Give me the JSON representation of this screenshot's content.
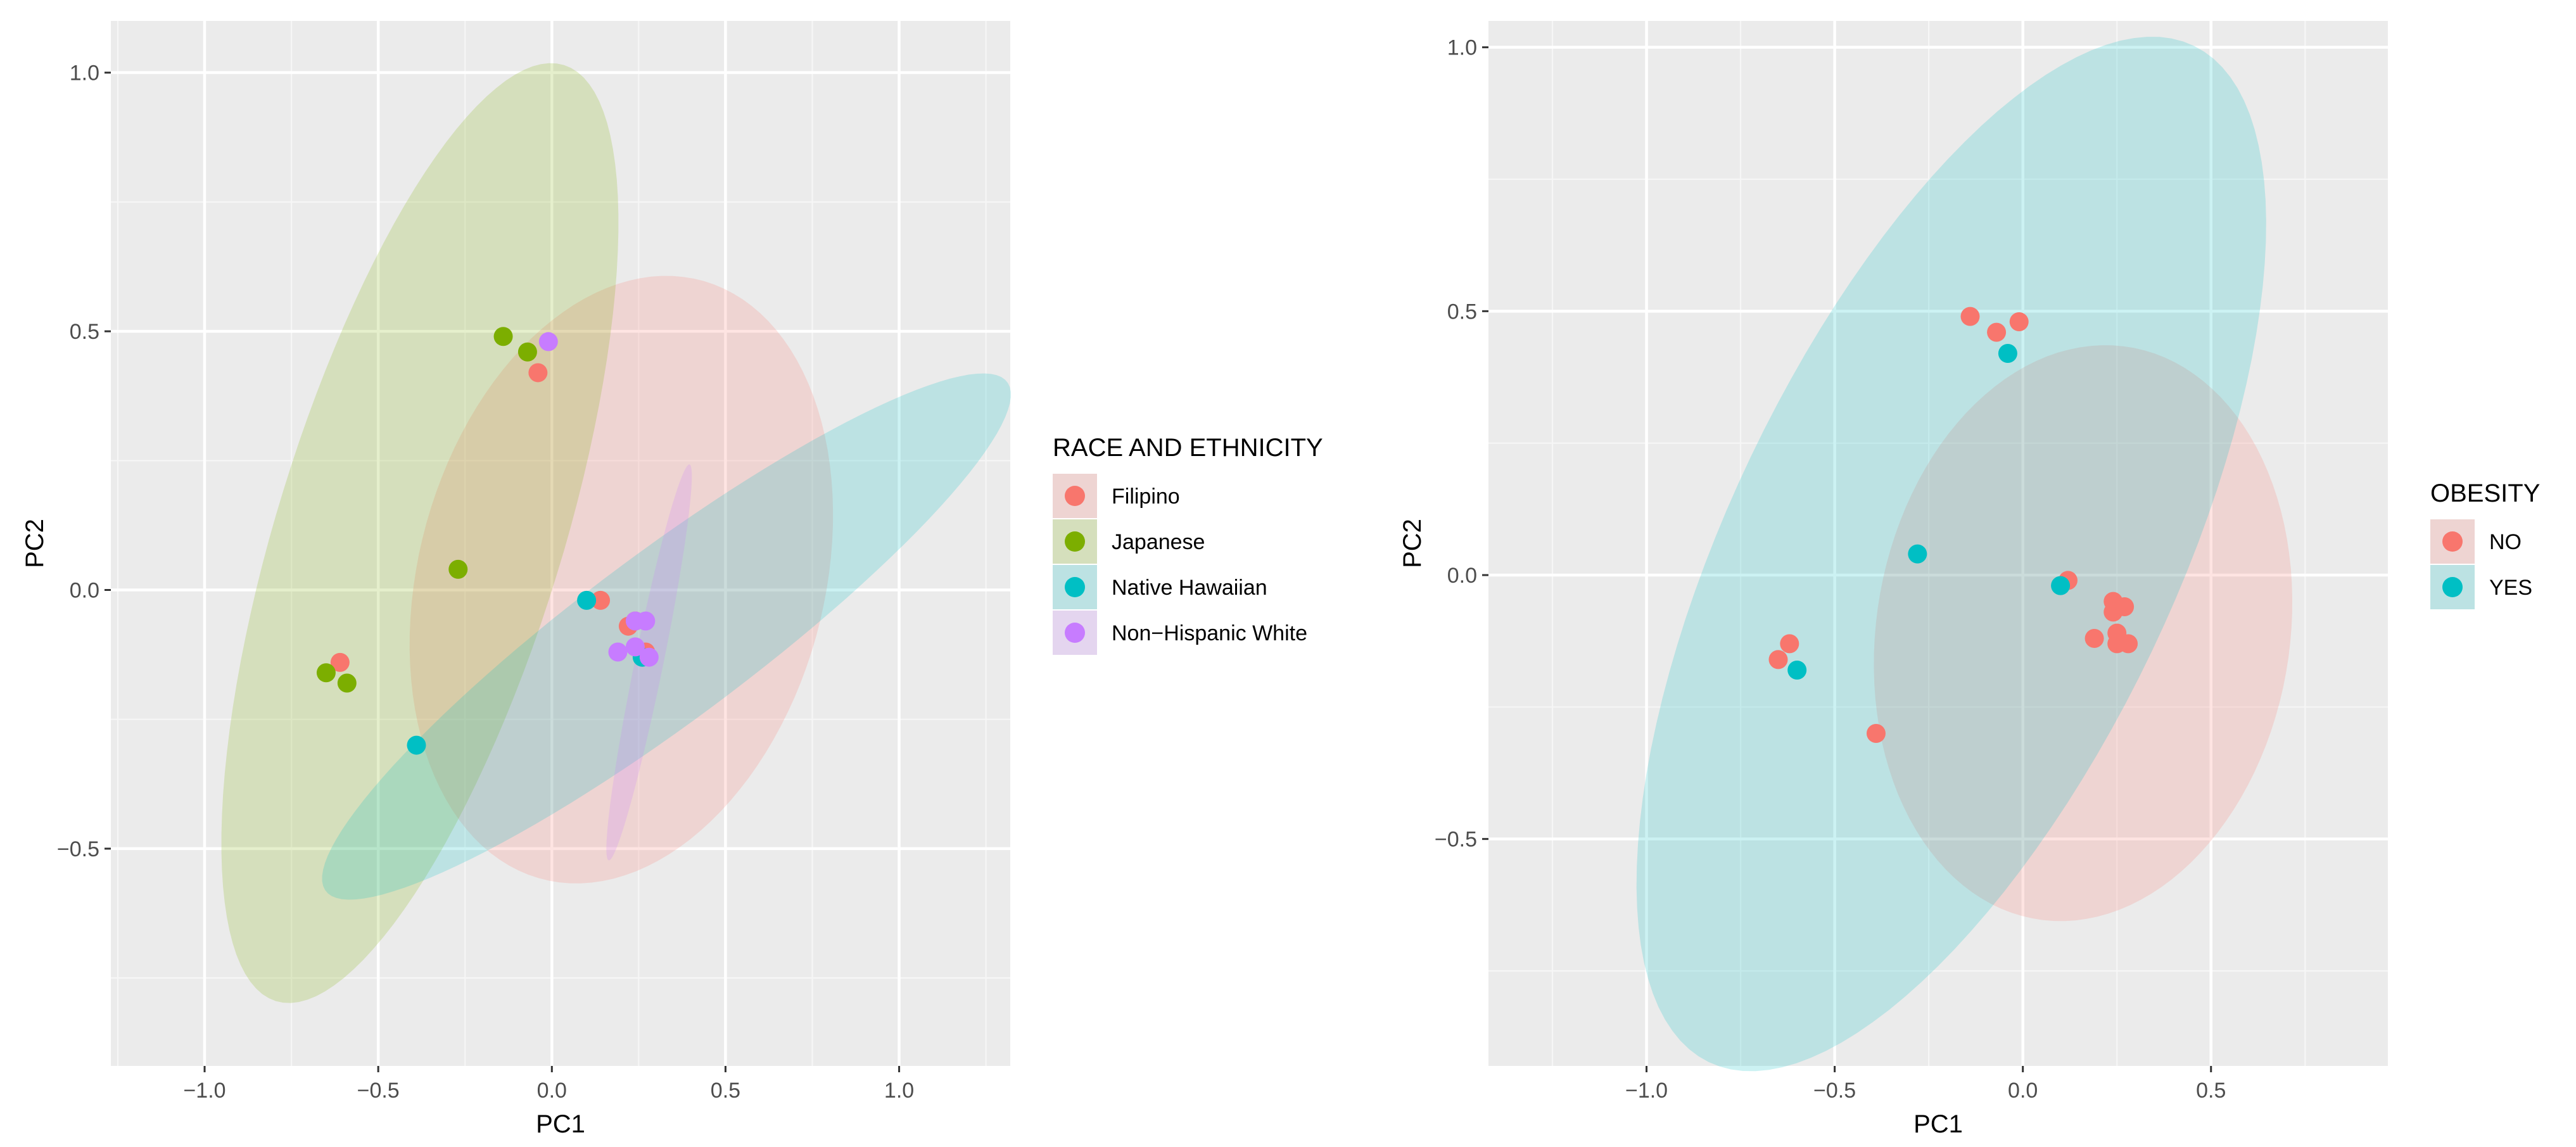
{
  "chart_data": [
    {
      "type": "scatter",
      "title": "",
      "xlabel": "PC1",
      "ylabel": "PC2",
      "xlim": [
        -1.27,
        1.32
      ],
      "ylim": [
        -0.92,
        1.1
      ],
      "x_ticks": [
        -1.0,
        -0.5,
        0.0,
        0.5,
        1.0
      ],
      "x_tick_labels": [
        "−1.0",
        "−0.5",
        "0.0",
        "0.5",
        "1.0"
      ],
      "y_ticks": [
        -0.5,
        0.0,
        0.5,
        1.0
      ],
      "y_tick_labels": [
        "−0.5",
        "0.0",
        "0.5",
        "1.0"
      ],
      "grid": true,
      "legend": {
        "title": "RACE AND ETHNICITY",
        "position": "right",
        "entries": [
          {
            "label": "Filipino",
            "color": "#F8766D"
          },
          {
            "label": "Japanese",
            "color": "#7CAE00"
          },
          {
            "label": "Native Hawaiian",
            "color": "#00BFC4"
          },
          {
            "label": "Non−Hispanic White",
            "color": "#C77CFF"
          }
        ]
      },
      "ellipses": [
        {
          "group": "Filipino",
          "color": "#F8766D",
          "center": [
            0.2,
            0.02
          ],
          "semi_axes": [
            0.66,
            0.53
          ],
          "angle_deg": 40
        },
        {
          "group": "Japanese",
          "color": "#7CAE00",
          "center": [
            -0.38,
            0.11
          ],
          "semi_axes": [
            1.0,
            0.39
          ],
          "angle_deg": 63
        },
        {
          "group": "Native Hawaiian",
          "color": "#00BFC4",
          "center": [
            0.33,
            -0.09
          ],
          "semi_axes": [
            1.1,
            0.18
          ],
          "angle_deg": 26
        },
        {
          "group": "Non−Hispanic White",
          "color": "#C77CFF",
          "center": [
            0.28,
            -0.14
          ],
          "semi_axes": [
            0.4,
            0.04
          ],
          "angle_deg": 73
        }
      ],
      "series": [
        {
          "name": "Filipino",
          "color": "#F8766D",
          "points": [
            [
              -0.04,
              0.42
            ],
            [
              -0.61,
              -0.14
            ],
            [
              0.14,
              -0.02
            ],
            [
              0.22,
              -0.07
            ],
            [
              0.24,
              -0.06
            ],
            [
              0.27,
              -0.12
            ]
          ]
        },
        {
          "name": "Japanese",
          "color": "#7CAE00",
          "points": [
            [
              -0.14,
              0.49
            ],
            [
              -0.07,
              0.46
            ],
            [
              -0.27,
              0.04
            ],
            [
              -0.65,
              -0.16
            ],
            [
              -0.59,
              -0.18
            ]
          ]
        },
        {
          "name": "Native Hawaiian",
          "color": "#00BFC4",
          "points": [
            [
              0.1,
              -0.02
            ],
            [
              -0.39,
              -0.3
            ],
            [
              0.26,
              -0.13
            ]
          ]
        },
        {
          "name": "Non−Hispanic White",
          "color": "#C77CFF",
          "points": [
            [
              -0.01,
              0.48
            ],
            [
              0.24,
              -0.06
            ],
            [
              0.27,
              -0.06
            ],
            [
              0.19,
              -0.12
            ],
            [
              0.24,
              -0.11
            ],
            [
              0.28,
              -0.13
            ]
          ]
        }
      ]
    },
    {
      "type": "scatter",
      "title": "",
      "xlabel": "PC1",
      "ylabel": "PC2",
      "xlim": [
        -1.42,
        0.97
      ],
      "ylim": [
        -0.93,
        1.05
      ],
      "x_ticks": [
        -1.0,
        -0.5,
        0.0,
        0.5
      ],
      "x_tick_labels": [
        "−1.0",
        "−0.5",
        "0.0",
        "0.5"
      ],
      "y_ticks": [
        -0.5,
        0.0,
        0.5,
        1.0
      ],
      "y_tick_labels": [
        "−0.5",
        "0.0",
        "0.5",
        "1.0"
      ],
      "grid": true,
      "legend": {
        "title": "OBESITY",
        "position": "right",
        "entries": [
          {
            "label": "NO",
            "color": "#F8766D"
          },
          {
            "label": "YES",
            "color": "#00BFC4"
          }
        ]
      },
      "ellipses": [
        {
          "group": "NO",
          "color": "#F8766D",
          "center": [
            0.16,
            -0.11
          ],
          "semi_axes": [
            0.58,
            0.52
          ],
          "angle_deg": 40
        },
        {
          "group": "YES",
          "color": "#00BFC4",
          "center": [
            -0.19,
            0.04
          ],
          "semi_axes": [
            1.17,
            0.54
          ],
          "angle_deg": 52
        }
      ],
      "series": [
        {
          "name": "NO",
          "color": "#F8766D",
          "points": [
            [
              -0.14,
              0.49
            ],
            [
              -0.07,
              0.46
            ],
            [
              -0.01,
              0.48
            ],
            [
              0.12,
              -0.01
            ],
            [
              0.24,
              -0.05
            ],
            [
              0.24,
              -0.07
            ],
            [
              0.27,
              -0.06
            ],
            [
              0.19,
              -0.12
            ],
            [
              0.25,
              -0.11
            ],
            [
              0.28,
              -0.13
            ],
            [
              0.25,
              -0.13
            ],
            [
              -0.65,
              -0.16
            ],
            [
              -0.62,
              -0.13
            ],
            [
              -0.39,
              -0.3
            ]
          ]
        },
        {
          "name": "YES",
          "color": "#00BFC4",
          "points": [
            [
              -0.04,
              0.42
            ],
            [
              -0.28,
              0.04
            ],
            [
              0.1,
              -0.02
            ],
            [
              -0.6,
              -0.18
            ]
          ]
        }
      ]
    }
  ]
}
